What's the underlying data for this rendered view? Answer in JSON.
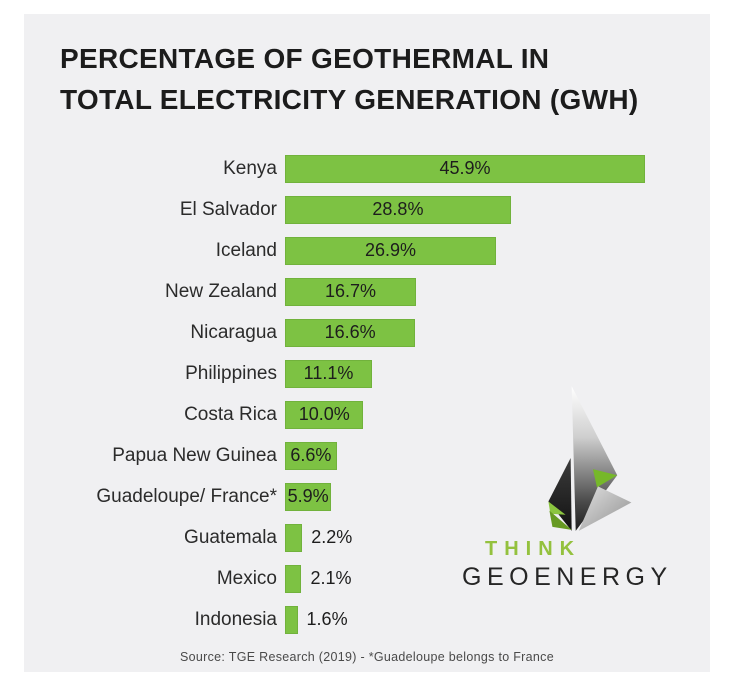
{
  "title": {
    "line1": "PERCENTAGE OF GEOTHERMAL IN",
    "line2": "TOTAL ELECTRICITY GENERATION (GWH)"
  },
  "chart_data": {
    "type": "bar",
    "orientation": "horizontal",
    "title": "PERCENTAGE OF GEOTHERMAL IN TOTAL ELECTRICITY GENERATION (GWH)",
    "categories": [
      "Kenya",
      "El Salvador",
      "Iceland",
      "New Zealand",
      "Nicaragua",
      "Philippines",
      "Costa Rica",
      "Papua New Guinea",
      "Guadeloupe/ France*",
      "Guatemala",
      "Mexico",
      "Indonesia"
    ],
    "values": [
      45.9,
      28.8,
      26.9,
      16.7,
      16.6,
      11.1,
      10.0,
      6.6,
      5.9,
      2.2,
      2.1,
      1.6
    ],
    "value_labels": [
      "45.9%",
      "28.8%",
      "26.9%",
      "16.7%",
      "16.6%",
      "11.1%",
      "10.0%",
      "6.6%",
      "5.9%",
      "2.2%",
      "2.1%",
      "1.6%"
    ],
    "xlim": [
      0,
      45.9
    ],
    "grid": false,
    "legend": "none",
    "bar_color": "#7dc243",
    "value_label_inside_threshold": 5
  },
  "logo": {
    "line1": "THINK",
    "line2": "GEOENERGY"
  },
  "footer": {
    "source": "Source: TGE Research (2019) - *Guadeloupe belongs to France"
  },
  "colors": {
    "page_bg": "#ffffff",
    "card_bg": "#f0f0f2",
    "bar_green": "#7dc243",
    "bar_border": "#71b23c",
    "title_text": "#1c1c1c",
    "label_text": "#2b2b2b",
    "think_green": "#94c13e",
    "geoenergy_text": "#262626",
    "source_text": "#4a4a4a"
  }
}
